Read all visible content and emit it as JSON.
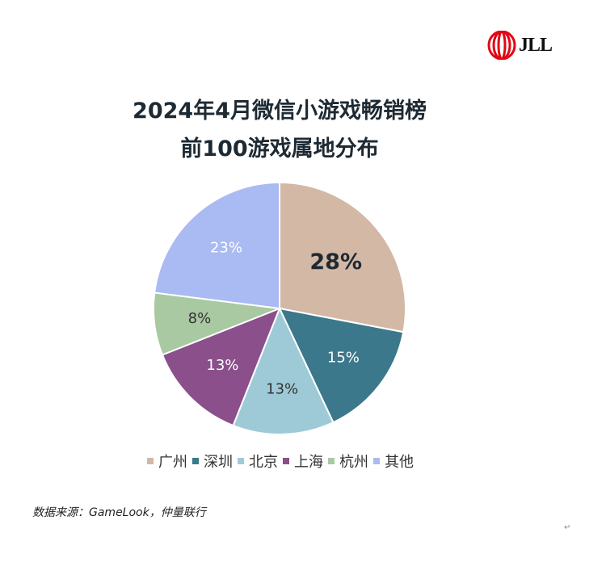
{
  "logo": {
    "text": "JLL",
    "color": "#e30613"
  },
  "chart_data": {
    "type": "pie",
    "title": "2024年4月微信小游戏畅销榜\n前100游戏属地分布",
    "title_lines": [
      "2024年4月微信小游戏畅销榜",
      "前100游戏属地分布"
    ],
    "start": "12 o'clock, clockwise",
    "slices": [
      {
        "label": "广州",
        "value": 28,
        "text": "28%",
        "color": "#d3b8a5",
        "label_color": "#1e2a33",
        "emphasis": true
      },
      {
        "label": "深圳",
        "value": 15,
        "text": "15%",
        "color": "#3b788b",
        "label_color": "#ffffff"
      },
      {
        "label": "北京",
        "value": 13,
        "text": "13%",
        "color": "#9ecad8",
        "label_color": "#333333"
      },
      {
        "label": "上海",
        "value": 13,
        "text": "13%",
        "color": "#8b4f8b",
        "label_color": "#ffffff"
      },
      {
        "label": "杭州",
        "value": 8,
        "text": "8%",
        "color": "#a8c9a1",
        "label_color": "#333333"
      },
      {
        "label": "其他",
        "value": 23,
        "text": "23%",
        "color": "#aabaf2",
        "label_color": "#ffffff"
      }
    ],
    "legend_position": "bottom"
  },
  "source": "数据来源：GameLook，仲量联行",
  "return_mark": "↵"
}
